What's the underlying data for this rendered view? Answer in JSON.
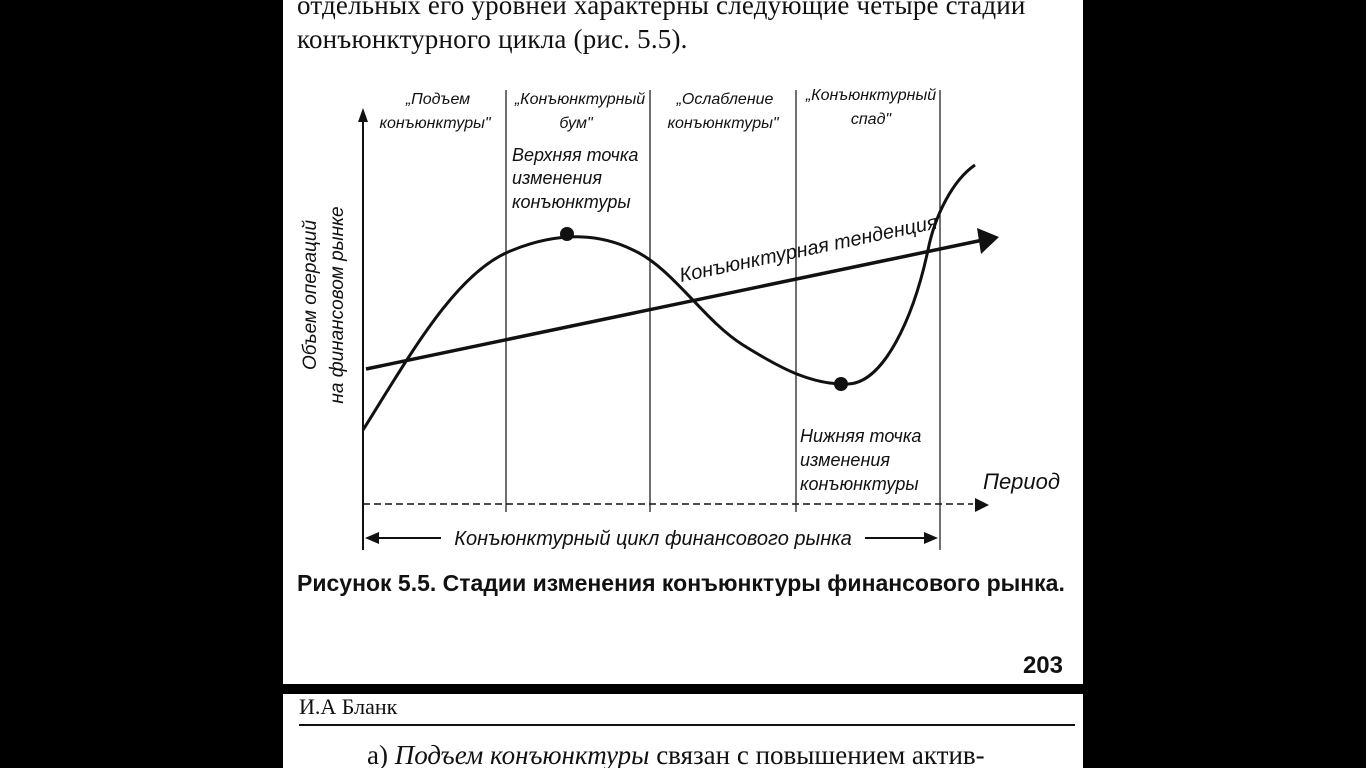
{
  "top_page": {
    "intro_text": "отдельных его уровней характерны следующие четыре стадии конъюнктурного цикла (рис. 5.5).",
    "figure": {
      "y_axis_label": [
        "Объем операций",
        "на финансовом рынке"
      ],
      "x_axis_label": "Период",
      "stages": [
        [
          "„Подъем",
          "конъюнктуры\""
        ],
        [
          "„Конъюнктурный",
          "бум\""
        ],
        [
          "„Ослабление",
          "конъюнктуры\""
        ],
        [
          "„Конъюнктурный",
          "спад\""
        ]
      ],
      "upper_point_label": [
        "Верхняя точка",
        "изменения",
        "конъюнктуры"
      ],
      "lower_point_label": [
        "Нижняя точка",
        "изменения",
        "конъюнктуры"
      ],
      "trend_label": "Конъюнктурная тенденция",
      "cycle_label": "Конъюнктурный цикл финансового рынка"
    },
    "caption": {
      "number": "Рисунок 5.5.",
      "title": "Стадии изменения конъюнктуры финансового рынка."
    },
    "page_number": "203"
  },
  "bottom_page": {
    "running_head": "И.А Бланк",
    "paragraph_prefix": "а) ",
    "paragraph_italic": "Подъем конъюнктуры",
    "paragraph_rest": " связан с повышением актив-"
  }
}
